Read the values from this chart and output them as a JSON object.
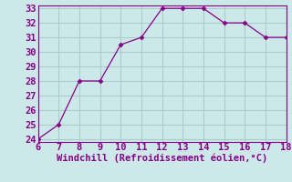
{
  "x": [
    6,
    7,
    8,
    9,
    10,
    11,
    12,
    13,
    14,
    15,
    16,
    17,
    18
  ],
  "y": [
    24,
    25,
    28,
    28,
    30.5,
    31,
    33,
    33,
    33,
    32,
    32,
    31,
    31
  ],
  "line_color": "#880088",
  "marker": "D",
  "marker_size": 2.5,
  "xlabel": "Windchill (Refroidissement éolien,°C)",
  "xlim": [
    6,
    18
  ],
  "ylim": [
    24,
    33
  ],
  "xticks": [
    6,
    7,
    8,
    9,
    10,
    11,
    12,
    13,
    14,
    15,
    16,
    17,
    18
  ],
  "yticks": [
    24,
    25,
    26,
    27,
    28,
    29,
    30,
    31,
    32,
    33
  ],
  "bg_color": "#cce8e8",
  "grid_color": "#aacccc",
  "label_color": "#880088",
  "tick_fontsize": 7.5,
  "xlabel_fontsize": 7.5
}
